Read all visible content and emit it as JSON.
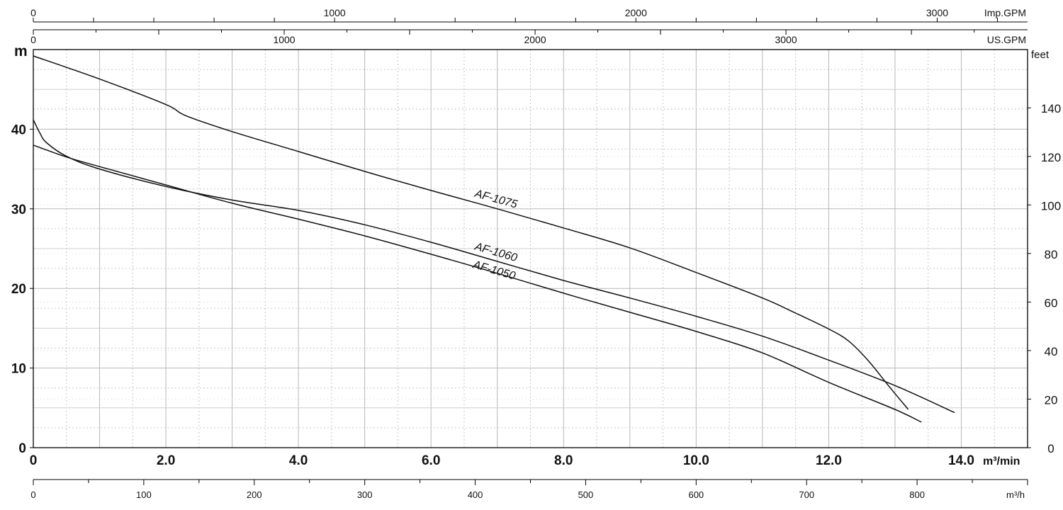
{
  "chart_data": {
    "type": "line",
    "x_axis_main": {
      "unit": "m³/min",
      "range": [
        0,
        15
      ],
      "ticks": [
        0,
        2,
        4,
        6,
        8,
        10,
        12,
        14
      ],
      "tick_labels": [
        "0",
        "2.0",
        "4.0",
        "6.0",
        "8.0",
        "10.0",
        "12.0",
        "14.0"
      ]
    },
    "x_axis_m3h": {
      "unit": "m³/h",
      "range": [
        0,
        900
      ],
      "ticks": [
        0,
        100,
        200,
        300,
        400,
        500,
        600,
        700,
        800
      ],
      "tick_labels": [
        "0",
        "100",
        "200",
        "300",
        "400",
        "500",
        "600",
        "700",
        "800"
      ]
    },
    "x_axis_usgpm": {
      "unit": "US.GPM",
      "range": [
        0,
        3963
      ],
      "ticks": [
        0,
        1000,
        2000,
        3000
      ],
      "tick_labels": [
        "0",
        "1000",
        "2000",
        "3000"
      ]
    },
    "x_axis_impgpm": {
      "unit": "Imp.GPM",
      "range": [
        0,
        3300
      ],
      "ticks": [
        0,
        1000,
        2000,
        3000
      ],
      "tick_labels": [
        "0",
        "1000",
        "2000",
        "3000"
      ]
    },
    "y_axis_left": {
      "unit": "m",
      "range": [
        0,
        50
      ],
      "ticks": [
        0,
        10,
        20,
        30,
        40
      ],
      "tick_labels": [
        "0",
        "10",
        "20",
        "30",
        "40"
      ]
    },
    "y_axis_right": {
      "unit": "feet",
      "range": [
        0,
        164
      ],
      "ticks": [
        0,
        20,
        40,
        60,
        80,
        100,
        120,
        140
      ],
      "tick_labels": [
        "0",
        "20",
        "40",
        "60",
        "80",
        "100",
        "120",
        "140"
      ]
    },
    "grid": true,
    "series": [
      {
        "name": "AF-1075",
        "x": [
          0,
          1,
          2,
          2.3,
          3,
          4,
          5,
          6,
          7,
          8,
          9,
          10,
          11,
          11.5,
          12,
          12.3,
          12.6,
          12.9,
          13.2
        ],
        "y": [
          49.2,
          46.3,
          43.1,
          41.7,
          39.7,
          37.2,
          34.7,
          32.3,
          30.0,
          27.6,
          25.1,
          22.0,
          18.8,
          16.9,
          14.9,
          13.4,
          10.9,
          7.8,
          4.8
        ]
      },
      {
        "name": "AF-1060",
        "x": [
          0,
          0.1,
          0.2,
          0.5,
          1,
          2,
          3,
          4,
          5,
          6,
          7,
          8,
          9,
          10,
          11,
          12,
          13,
          13.9
        ],
        "y": [
          41.2,
          39.5,
          38.3,
          36.6,
          35.0,
          32.8,
          31.1,
          29.8,
          28.0,
          25.8,
          23.4,
          21.0,
          18.8,
          16.5,
          14.0,
          11.0,
          7.8,
          4.4
        ]
      },
      {
        "name": "AF-1050",
        "x": [
          0,
          0.5,
          1,
          2,
          3,
          4,
          5,
          6,
          7,
          8,
          9,
          10,
          11,
          12,
          13,
          13.4
        ],
        "y": [
          38.0,
          36.5,
          35.3,
          33.0,
          30.7,
          28.7,
          26.6,
          24.3,
          21.9,
          19.4,
          17.0,
          14.6,
          11.9,
          8.2,
          4.8,
          3.2
        ]
      }
    ]
  }
}
